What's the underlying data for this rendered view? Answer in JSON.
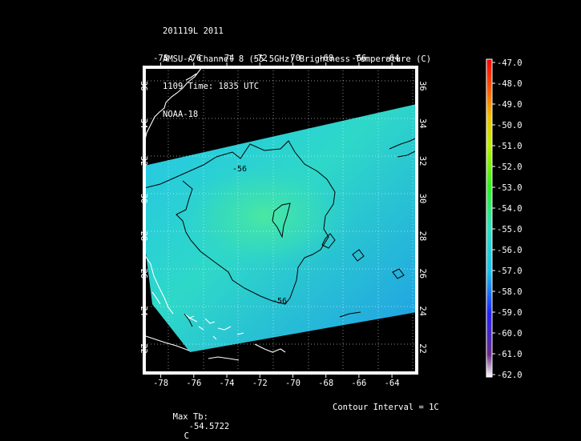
{
  "header": {
    "line1": "201119L 2011",
    "line2": "AMSU-A Channel 8 (55.5GHz) Brightness Temperature (C)",
    "line3": "1109 Time: 1835 UTC",
    "line4": "NOAA-18"
  },
  "map": {
    "lon_ticks": [
      "-78",
      "-76",
      "-74",
      "-72",
      "-70",
      "-68",
      "-66",
      "-64"
    ],
    "lat_ticks": [
      "22",
      "24",
      "26",
      "28",
      "30",
      "32",
      "34",
      "36"
    ],
    "lon_range": [
      -79,
      -62.5
    ],
    "lat_range": [
      20.7,
      37
    ],
    "contour_labels": [
      "-56",
      "-56"
    ]
  },
  "colorbar": {
    "labels": [
      "-47.0",
      "-48.0",
      "-49.0",
      "-50.0",
      "-51.0",
      "-52.0",
      "-53.0",
      "-54.0",
      "-55.0",
      "-56.0",
      "-57.0",
      "-58.0",
      "-59.0",
      "-60.0",
      "-61.0",
      "-62.0"
    ],
    "range": [
      -62,
      -47
    ]
  },
  "footer": {
    "max_tb_label": "Max Tb:",
    "max_tb_value": "-54.5722",
    "max_tb_unit": "C",
    "contour_interval": "Contour Interval = 1C"
  }
}
